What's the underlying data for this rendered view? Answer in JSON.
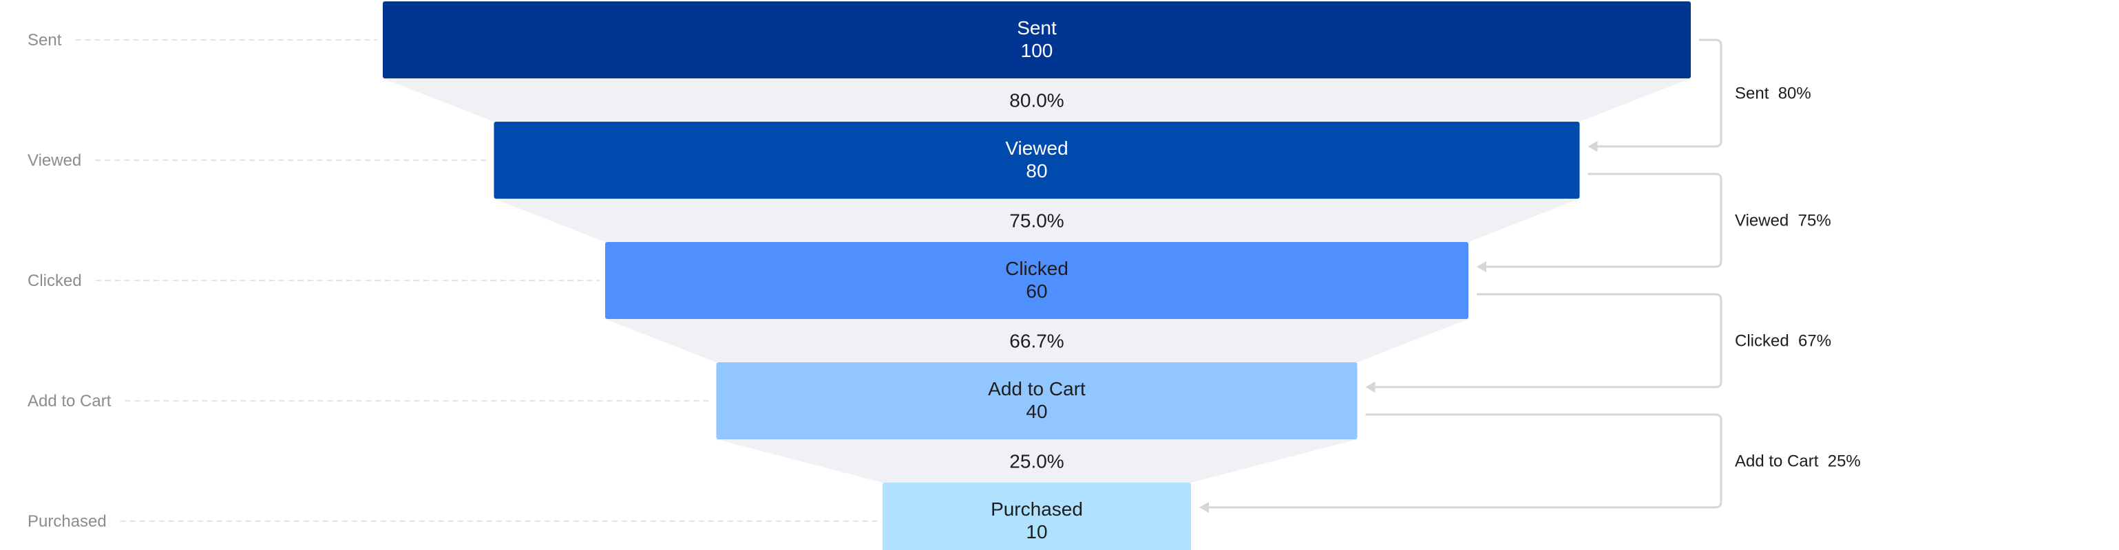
{
  "chart_data": {
    "type": "funnel",
    "stages": [
      {
        "label": "Sent",
        "value": 100,
        "color": "#003592",
        "text_color": "#ffffff"
      },
      {
        "label": "Viewed",
        "value": 80,
        "color": "#0049ad",
        "text_color": "#ffffff"
      },
      {
        "label": "Clicked",
        "value": 60,
        "color": "#5090fe",
        "text_color": "#1d1d1d"
      },
      {
        "label": "Add to Cart",
        "value": 40,
        "color": "#92c6fe",
        "text_color": "#1d1d1d"
      },
      {
        "label": "Purchased",
        "value": 10,
        "color": "#b0e2ff",
        "text_color": "#1d1d1d"
      }
    ],
    "conversion_labels": [
      "80.0%",
      "75.0%",
      "66.7%",
      "25.0%"
    ],
    "side_conversions": [
      {
        "stage": "Sent",
        "rate": "80%"
      },
      {
        "stage": "Viewed",
        "rate": "75%"
      },
      {
        "stage": "Clicked",
        "rate": "67%"
      },
      {
        "stage": "Add to Cart",
        "rate": "25%"
      }
    ]
  }
}
